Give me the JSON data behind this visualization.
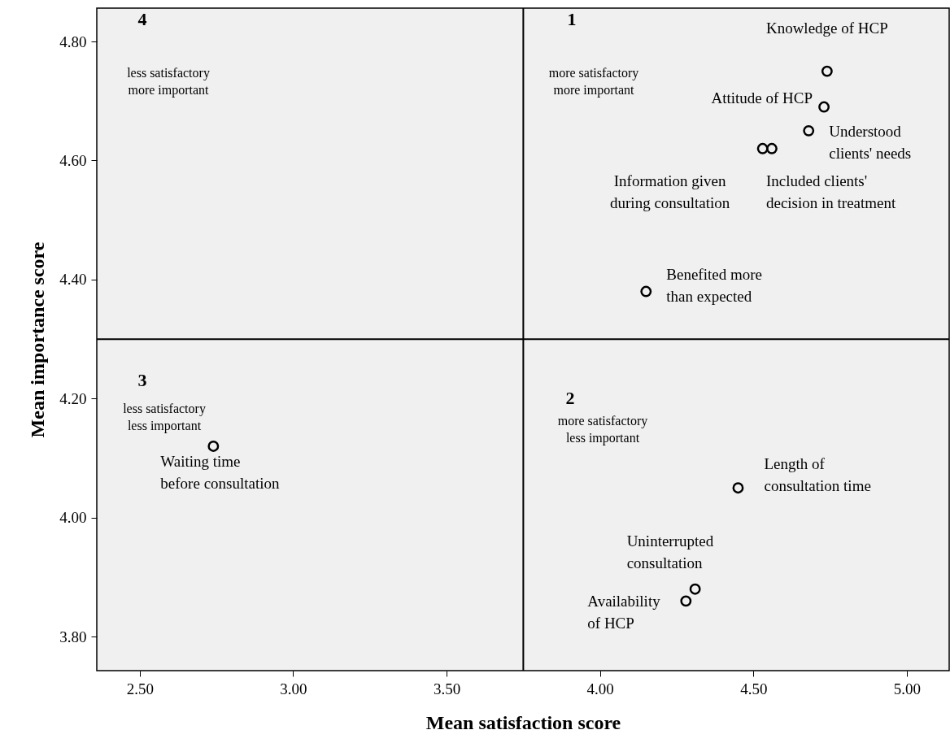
{
  "chart_data": {
    "type": "scatter",
    "xlabel": "Mean satisfaction score",
    "ylabel": "Mean importance score",
    "x": [
      4.74,
      4.73,
      4.68,
      4.53,
      4.56,
      4.15,
      2.74,
      4.45,
      4.31,
      4.28
    ],
    "values": [
      4.75,
      4.69,
      4.65,
      4.62,
      4.62,
      4.38,
      4.12,
      4.05,
      3.88,
      3.86
    ],
    "color": "#000000",
    "marker": "circle",
    "grid": false,
    "xlim": [
      2.36,
      5.138
    ],
    "ylim": [
      3.743,
      4.856
    ],
    "xticks": [
      {
        "value": 2.5,
        "label": "2.50"
      },
      {
        "value": 3.0,
        "label": "3.00"
      },
      {
        "value": 3.5,
        "label": "3.50"
      },
      {
        "value": 4.0,
        "label": "4.00"
      },
      {
        "value": 4.5,
        "label": "4.50"
      },
      {
        "value": 5.0,
        "label": "5.00"
      }
    ],
    "yticks": [
      {
        "value": 3.8,
        "label": "3.80"
      },
      {
        "value": 4.0,
        "label": "4.00"
      },
      {
        "value": 4.2,
        "label": "4.20"
      },
      {
        "value": 4.4,
        "label": "4.40"
      },
      {
        "value": 4.6,
        "label": "4.60"
      },
      {
        "value": 4.8,
        "label": "4.80"
      }
    ],
    "ref_lines": [
      {
        "axis": "x",
        "value": 3.75,
        "color": "#000000"
      },
      {
        "axis": "y",
        "value": 4.3,
        "color": "#000000"
      }
    ],
    "annotations": [
      {
        "text": "Knowledge of HCP",
        "x": 4.74,
        "y": 4.75
      },
      {
        "text": "Attitude of HCP",
        "x": 4.73,
        "y": 4.69
      },
      {
        "text": "Understood\nclients' needs",
        "x": 4.68,
        "y": 4.65
      },
      {
        "text": "Information given\nduring consultation",
        "x": 4.53,
        "y": 4.62
      },
      {
        "text": "Included clients'\ndecision in treatment",
        "x": 4.56,
        "y": 4.62
      },
      {
        "text": "Benefited more\nthan expected",
        "x": 4.15,
        "y": 4.38
      },
      {
        "text": "Waiting time\nbefore consultation",
        "x": 2.74,
        "y": 4.12
      },
      {
        "text": "Length of\nconsultation time",
        "x": 4.45,
        "y": 4.05
      },
      {
        "text": "Uninterrupted\nconsultation",
        "x": 4.31,
        "y": 3.88
      },
      {
        "text": "Availability\nof HCP",
        "x": 4.28,
        "y": 3.86
      },
      "1",
      "more satisfactory\nmore important",
      "2",
      "more satisfactory\nless important",
      "3",
      "less satisfactory\nless important",
      "4",
      "less satisfactory\nmore important"
    ]
  }
}
